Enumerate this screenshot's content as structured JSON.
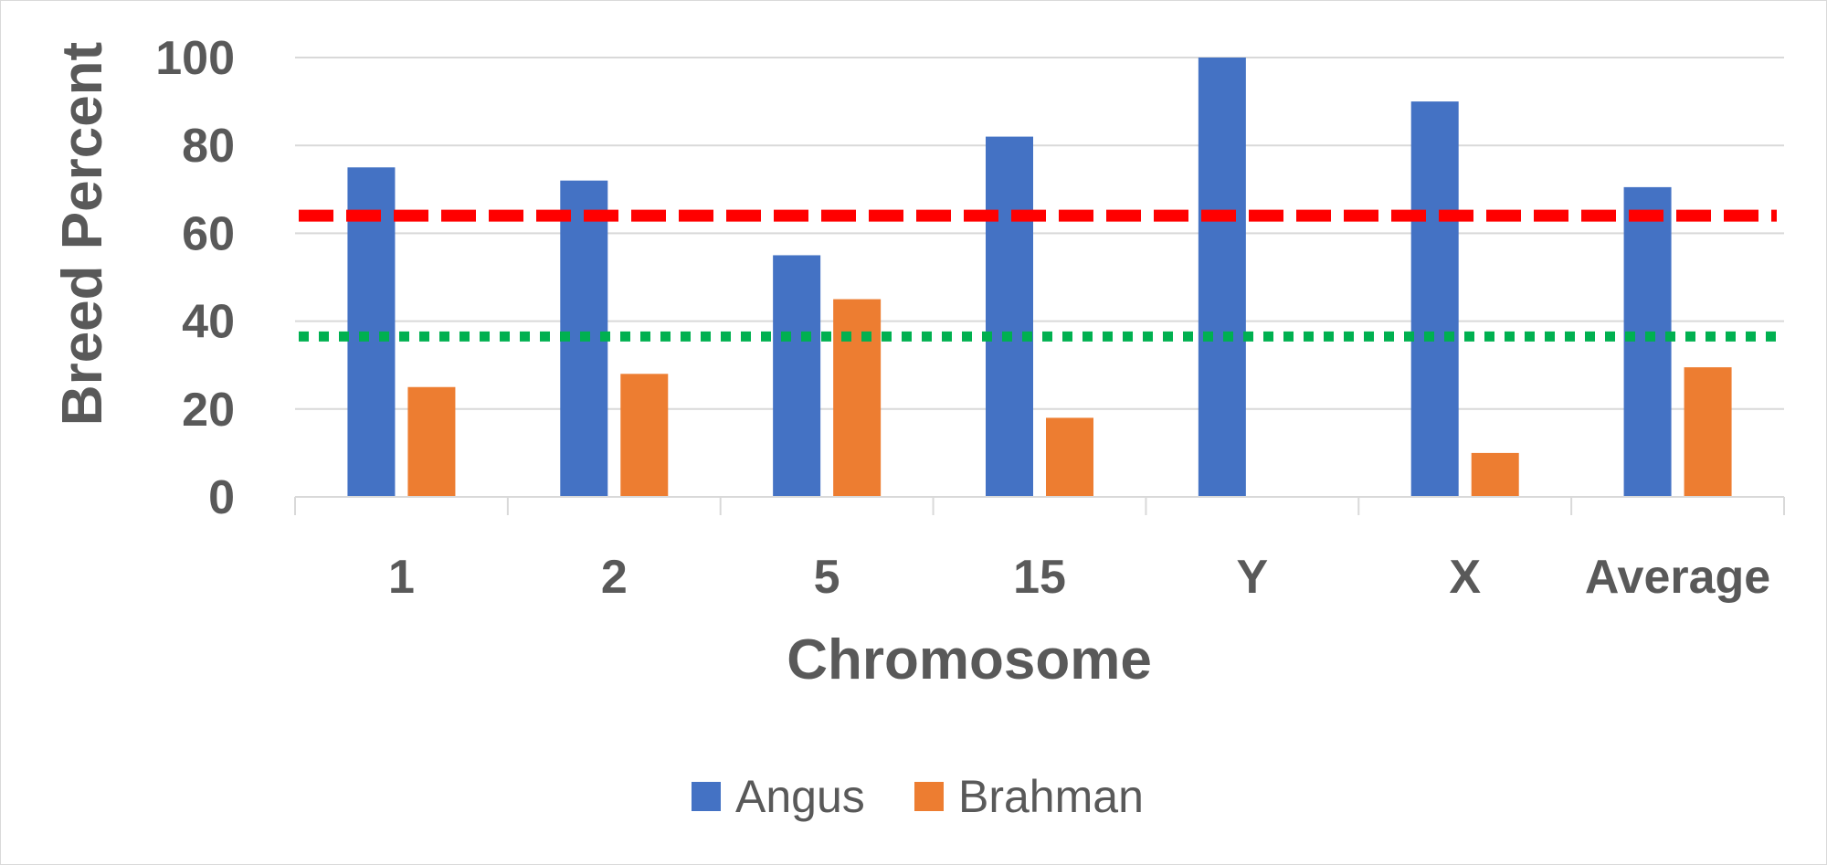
{
  "chart_data": {
    "type": "bar",
    "title": "",
    "xlabel": "Chromosome",
    "ylabel": "Breed Percent",
    "categories": [
      "1",
      "2",
      "5",
      "15",
      "Y",
      "X",
      "Average"
    ],
    "series": [
      {
        "name": "Angus",
        "color": "#4472C4",
        "values": [
          75,
          72,
          55,
          82,
          100,
          90,
          70.5
        ]
      },
      {
        "name": "Brahman",
        "color": "#ED7D31",
        "values": [
          25,
          28,
          45,
          18,
          0,
          10,
          29.5
        ]
      }
    ],
    "yticks": [
      "0",
      "20",
      "40",
      "60",
      "80",
      "100"
    ],
    "ylim": [
      0,
      100
    ],
    "grid": true,
    "legend": "bottom",
    "reference_lines": [
      {
        "value": 64,
        "color": "#FF0000",
        "style": "dashed"
      },
      {
        "value": 36.5,
        "color": "#00B050",
        "style": "dotted"
      }
    ]
  }
}
